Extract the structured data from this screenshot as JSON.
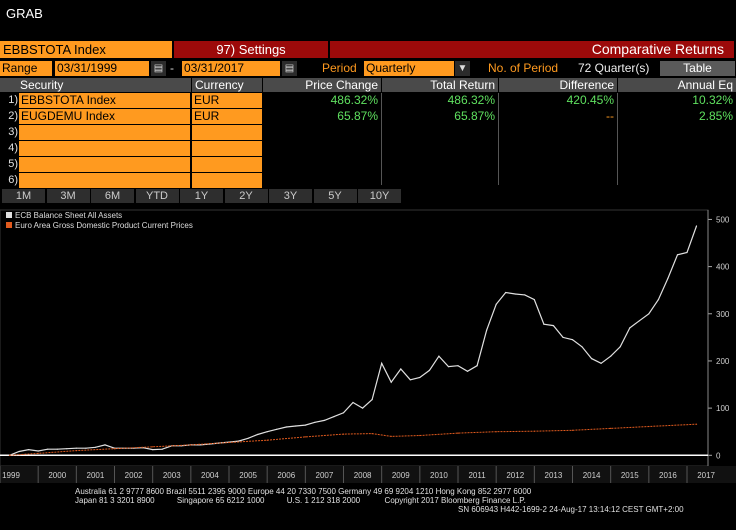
{
  "window": {
    "title": "GRAB"
  },
  "header": {
    "ticker": "EBBSTOTA Index",
    "settings_label": "97) Settings",
    "function_title": "Comparative Returns"
  },
  "controls": {
    "range_label": "Range",
    "start_date": "03/31/1999",
    "dash": "-",
    "end_date": "03/31/2017",
    "period_label": "Period",
    "period_value": "Quarterly",
    "no_of_period_label": "No. of Period",
    "no_of_period_value": "72 Quarter(s)",
    "table_button": "Table"
  },
  "table": {
    "headers": [
      "Security",
      "Currency",
      "Price Change",
      "Total Return",
      "Difference",
      "Annual Eq"
    ],
    "rows": [
      {
        "num": "1)",
        "security": "EBBSTOTA Index",
        "currency": "EUR",
        "price_change": "486.32%",
        "total_return": "486.32%",
        "difference": "420.45%",
        "annual_eq": "10.32%"
      },
      {
        "num": "2)",
        "security": "EUGDEMU  Index",
        "currency": "EUR",
        "price_change": "65.87%",
        "total_return": "65.87%",
        "difference": "--",
        "annual_eq": "2.85%"
      },
      {
        "num": "3)",
        "security": "",
        "currency": "",
        "price_change": "",
        "total_return": "",
        "difference": "",
        "annual_eq": ""
      },
      {
        "num": "4)",
        "security": "",
        "currency": "",
        "price_change": "",
        "total_return": "",
        "difference": "",
        "annual_eq": ""
      },
      {
        "num": "5)",
        "security": "",
        "currency": "",
        "price_change": "",
        "total_return": "",
        "difference": "",
        "annual_eq": ""
      },
      {
        "num": "6)",
        "security": "",
        "currency": "",
        "price_change": "",
        "total_return": "",
        "difference": "",
        "annual_eq": ""
      }
    ]
  },
  "period_buttons": [
    "1M",
    "3M",
    "6M",
    "YTD",
    "1Y",
    "2Y",
    "3Y",
    "5Y",
    "10Y"
  ],
  "chart_data": {
    "type": "line",
    "title": "",
    "xlabel": "",
    "ylabel": "",
    "ylim": [
      -10,
      520
    ],
    "yticks": [
      0,
      100,
      200,
      300,
      400,
      500
    ],
    "xticks": [
      "1999",
      "2000",
      "2001",
      "2002",
      "2003",
      "2004",
      "2005",
      "2006",
      "2007",
      "2008",
      "2009",
      "2010",
      "2011",
      "2012",
      "2013",
      "2014",
      "2015",
      "2016",
      "2017"
    ],
    "legend_position": "top-left",
    "series": [
      {
        "name": "ECB Balance Sheet All Assets",
        "color": "#e0e0e0",
        "points": [
          [
            1999.25,
            0
          ],
          [
            1999.5,
            8
          ],
          [
            1999.75,
            12
          ],
          [
            2000.0,
            9
          ],
          [
            2000.25,
            13
          ],
          [
            2000.5,
            13
          ],
          [
            2000.75,
            14
          ],
          [
            2001.0,
            15
          ],
          [
            2001.25,
            15
          ],
          [
            2001.5,
            17
          ],
          [
            2001.75,
            22
          ],
          [
            2002.0,
            15
          ],
          [
            2002.25,
            15
          ],
          [
            2002.5,
            15
          ],
          [
            2002.75,
            16
          ],
          [
            2003.0,
            12
          ],
          [
            2003.25,
            13
          ],
          [
            2003.5,
            20
          ],
          [
            2003.75,
            20
          ],
          [
            2004.0,
            22
          ],
          [
            2004.25,
            22
          ],
          [
            2004.5,
            24
          ],
          [
            2004.75,
            26
          ],
          [
            2005.0,
            28
          ],
          [
            2005.25,
            30
          ],
          [
            2005.5,
            36
          ],
          [
            2005.75,
            44
          ],
          [
            2006.0,
            50
          ],
          [
            2006.25,
            55
          ],
          [
            2006.5,
            60
          ],
          [
            2006.75,
            62
          ],
          [
            2007.0,
            64
          ],
          [
            2007.25,
            70
          ],
          [
            2007.5,
            74
          ],
          [
            2007.75,
            82
          ],
          [
            2008.0,
            90
          ],
          [
            2008.25,
            112
          ],
          [
            2008.5,
            100
          ],
          [
            2008.75,
            118
          ],
          [
            2009.0,
            195
          ],
          [
            2009.25,
            155
          ],
          [
            2009.5,
            183
          ],
          [
            2009.75,
            160
          ],
          [
            2010.0,
            165
          ],
          [
            2010.25,
            180
          ],
          [
            2010.5,
            210
          ],
          [
            2010.75,
            188
          ],
          [
            2011.0,
            190
          ],
          [
            2011.25,
            178
          ],
          [
            2011.5,
            190
          ],
          [
            2011.75,
            265
          ],
          [
            2012.0,
            320
          ],
          [
            2012.25,
            345
          ],
          [
            2012.5,
            342
          ],
          [
            2012.75,
            340
          ],
          [
            2013.0,
            330
          ],
          [
            2013.25,
            278
          ],
          [
            2013.5,
            275
          ],
          [
            2013.75,
            250
          ],
          [
            2014.0,
            245
          ],
          [
            2014.25,
            230
          ],
          [
            2014.5,
            205
          ],
          [
            2014.75,
            195
          ],
          [
            2015.0,
            210
          ],
          [
            2015.25,
            230
          ],
          [
            2015.5,
            270
          ],
          [
            2015.75,
            285
          ],
          [
            2016.0,
            300
          ],
          [
            2016.25,
            330
          ],
          [
            2016.5,
            375
          ],
          [
            2016.75,
            425
          ],
          [
            2017.0,
            430
          ],
          [
            2017.25,
            486
          ]
        ]
      },
      {
        "name": "Euro Area Gross Domestic Product Current Prices",
        "color": "#e05a1e",
        "points": [
          [
            1999.25,
            0
          ],
          [
            2000.0,
            4
          ],
          [
            2001.0,
            10
          ],
          [
            2002.0,
            14
          ],
          [
            2003.0,
            18
          ],
          [
            2004.0,
            22
          ],
          [
            2005.0,
            27
          ],
          [
            2006.0,
            32
          ],
          [
            2007.0,
            39
          ],
          [
            2008.0,
            45
          ],
          [
            2008.75,
            46
          ],
          [
            2009.25,
            40
          ],
          [
            2010.0,
            42
          ],
          [
            2011.0,
            47
          ],
          [
            2012.0,
            50
          ],
          [
            2013.0,
            51
          ],
          [
            2014.0,
            53
          ],
          [
            2015.0,
            57
          ],
          [
            2016.0,
            61
          ],
          [
            2017.25,
            66
          ]
        ]
      }
    ]
  },
  "footer": {
    "line1": "Australia 61 2 9777 8600 Brazil 5511 2395 9000 Europe 44 20 7330 7500 Germany 49 69 9204 1210 Hong Kong 852 2977 6000",
    "line2": "Japan 81 3 3201 8900          Singapore 65 6212 1000          U.S. 1 212 318 2000           Copyright 2017 Bloomberg Finance L.P.",
    "line3": "SN 606943 H442-1699-2 24-Aug-17 13:14:12 CEST GMT+2:00"
  }
}
